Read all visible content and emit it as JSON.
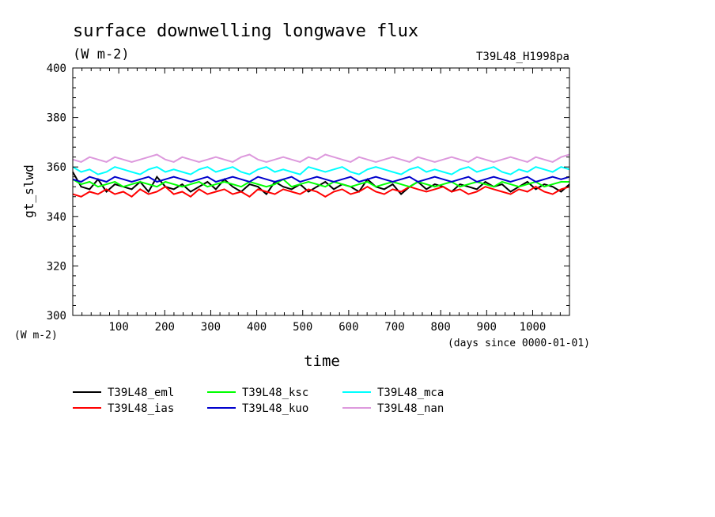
{
  "chart_data": {
    "type": "line",
    "title": "surface downwelling longwave flux",
    "subtitle": "(W m-2)",
    "run_label": "T39L48_H1998pa",
    "ylabel": "gt_slwd",
    "y_unit_label": "(W m-2)",
    "xlabel": "time",
    "x_unit_label": "(days since 0000-01-01)",
    "xlim": [
      0,
      1080
    ],
    "ylim": [
      300,
      400
    ],
    "x_ticks": [
      100,
      200,
      300,
      400,
      500,
      600,
      700,
      800,
      900,
      1000
    ],
    "y_ticks": [
      300,
      320,
      340,
      360,
      380,
      400
    ],
    "grid": false,
    "legend_placement": "bottom",
    "series": [
      {
        "name": "T39L48_eml",
        "color": "#000000",
        "values": [
          358,
          352,
          351,
          355,
          350,
          353,
          352,
          351,
          354,
          350,
          356,
          352,
          351,
          353,
          350,
          352,
          354,
          351,
          355,
          352,
          350,
          353,
          352,
          349,
          354,
          352,
          351,
          353,
          350,
          352,
          354,
          351,
          353,
          352,
          350,
          355,
          352,
          351,
          353,
          349,
          352,
          354,
          351,
          353,
          352,
          350,
          353,
          352,
          351,
          354,
          352,
          353,
          350,
          352,
          354,
          351,
          353,
          352,
          350,
          353
        ]
      },
      {
        "name": "T39L48_ias",
        "color": "#ff0000",
        "values": [
          349,
          348,
          350,
          349,
          351,
          349,
          350,
          348,
          351,
          349,
          350,
          352,
          349,
          350,
          348,
          351,
          349,
          350,
          351,
          349,
          350,
          348,
          351,
          350,
          349,
          351,
          350,
          349,
          351,
          350,
          348,
          350,
          351,
          349,
          350,
          352,
          350,
          349,
          351,
          350,
          352,
          351,
          350,
          351,
          352,
          350,
          351,
          349,
          350,
          352,
          351,
          350,
          349,
          351,
          350,
          352,
          350,
          349,
          351,
          352
        ]
      },
      {
        "name": "T39L48_ksc",
        "color": "#00ff00",
        "values": [
          355,
          353,
          354,
          352,
          353,
          354,
          352,
          353,
          354,
          353,
          352,
          354,
          353,
          352,
          353,
          354,
          352,
          353,
          354,
          353,
          352,
          354,
          353,
          352,
          353,
          355,
          352,
          353,
          354,
          353,
          352,
          354,
          353,
          352,
          353,
          354,
          352,
          353,
          354,
          353,
          352,
          354,
          353,
          352,
          353,
          354,
          352,
          353,
          354,
          353,
          352,
          354,
          353,
          352,
          353,
          354,
          352,
          353,
          354,
          354
        ]
      },
      {
        "name": "T39L48_kuo",
        "color": "#0000cc",
        "values": [
          355,
          354,
          356,
          355,
          354,
          356,
          355,
          354,
          355,
          356,
          354,
          355,
          356,
          355,
          354,
          355,
          356,
          354,
          355,
          356,
          355,
          354,
          356,
          355,
          354,
          355,
          356,
          354,
          355,
          356,
          355,
          354,
          355,
          356,
          354,
          355,
          356,
          355,
          354,
          355,
          356,
          354,
          355,
          356,
          355,
          354,
          355,
          356,
          354,
          355,
          356,
          355,
          354,
          355,
          356,
          354,
          355,
          356,
          355,
          356
        ]
      },
      {
        "name": "T39L48_mca",
        "color": "#00ffff",
        "values": [
          360,
          358,
          359,
          357,
          358,
          360,
          359,
          358,
          357,
          359,
          360,
          358,
          359,
          358,
          357,
          359,
          360,
          358,
          359,
          360,
          358,
          357,
          359,
          360,
          358,
          359,
          358,
          357,
          360,
          359,
          358,
          359,
          360,
          358,
          357,
          359,
          360,
          359,
          358,
          357,
          359,
          360,
          358,
          359,
          358,
          357,
          359,
          360,
          358,
          359,
          360,
          358,
          357,
          359,
          358,
          360,
          359,
          358,
          360,
          359
        ]
      },
      {
        "name": "T39L48_nan",
        "color": "#dd99dd",
        "values": [
          363,
          362,
          364,
          363,
          362,
          364,
          363,
          362,
          363,
          364,
          365,
          363,
          362,
          364,
          363,
          362,
          363,
          364,
          363,
          362,
          364,
          365,
          363,
          362,
          363,
          364,
          363,
          362,
          364,
          363,
          365,
          364,
          363,
          362,
          364,
          363,
          362,
          363,
          364,
          363,
          362,
          364,
          363,
          362,
          363,
          364,
          363,
          362,
          364,
          363,
          362,
          363,
          364,
          363,
          362,
          364,
          363,
          362,
          364,
          365
        ]
      }
    ]
  }
}
